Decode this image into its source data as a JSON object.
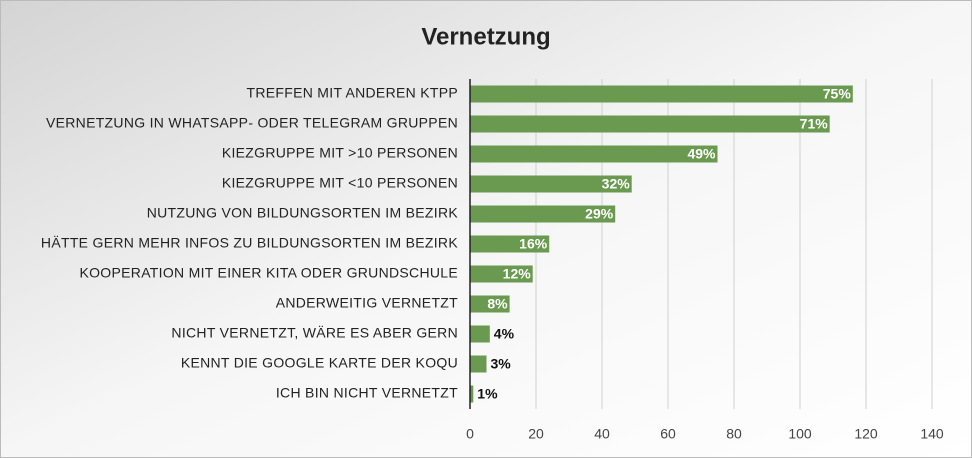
{
  "chart_data": {
    "type": "bar",
    "orientation": "horizontal",
    "title": "Vernetzung",
    "categories": [
      "TREFFEN MIT ANDEREN KTPP",
      "VERNETZUNG IN WHATSAPP- ODER TELEGRAM GRUPPEN",
      "KIEZGRUPPE MIT >10 PERSONEN",
      "KIEZGRUPPE MIT <10 PERSONEN",
      "NUTZUNG VON BILDUNGSORTEN IM BEZIRK",
      "HÄTTE GERN MEHR INFOS ZU BILDUNGSORTEN IM BEZIRK",
      "KOOPERATION MIT EINER KITA ODER GRUNDSCHULE",
      "ANDERWEITIG VERNETZT",
      "NICHT VERNETZT, WÄRE ES ABER GERN",
      "KENNT DIE GOOGLE KARTE DER KOQU",
      "ICH BIN NICHT VERNETZT"
    ],
    "values": [
      116,
      109,
      75,
      49,
      44,
      24,
      19,
      12,
      6,
      5,
      1
    ],
    "value_labels": [
      "75%",
      "71%",
      "49%",
      "32%",
      "29%",
      "16%",
      "12%",
      "8%",
      "4%",
      "3%",
      "1%"
    ],
    "color": "#6a9a4f",
    "xlim": [
      0,
      140
    ],
    "xticks": [
      0,
      20,
      40,
      60,
      80,
      100,
      120,
      140
    ],
    "grid": true
  }
}
